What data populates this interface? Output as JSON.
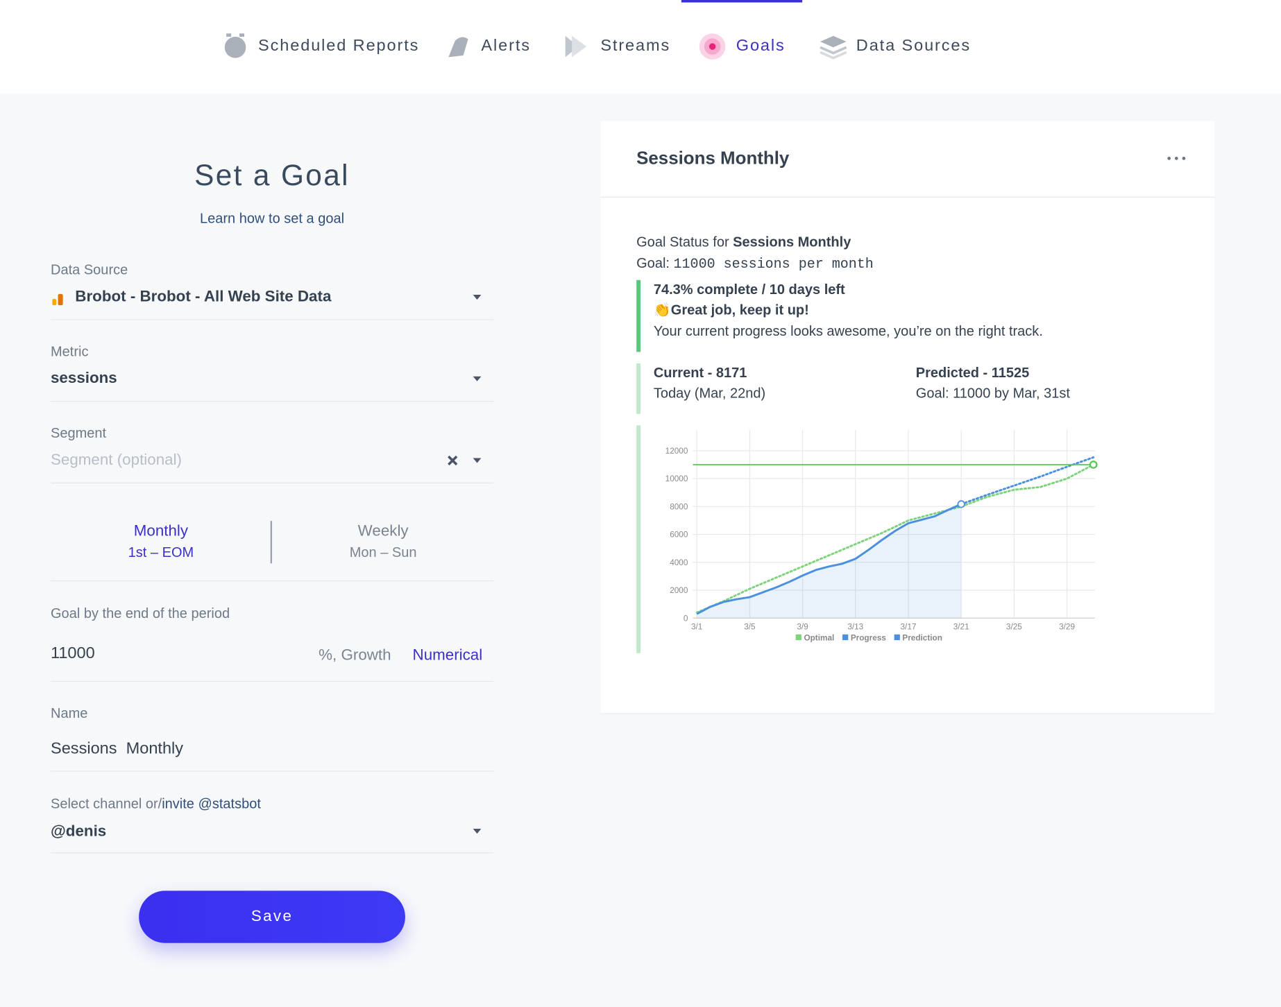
{
  "nav": {
    "items": [
      "Scheduled Reports",
      "Alerts",
      "Streams",
      "Goals",
      "Data Sources"
    ],
    "active": 3
  },
  "form": {
    "title": "Set a Goal",
    "help": "Learn how to set a goal",
    "data_source": {
      "label": "Data Source",
      "value": "Brobot - Brobot - All Web Site Data"
    },
    "metric": {
      "label": "Metric",
      "value": "sessions"
    },
    "segment": {
      "label": "Segment",
      "placeholder": "Segment (optional)"
    },
    "period": [
      {
        "name": "Monthly",
        "range": "1st – EOM"
      },
      {
        "name": "Weekly",
        "range": "Mon – Sun"
      }
    ],
    "goal": {
      "label": "Goal by the end of the period",
      "value": "11000",
      "modes": [
        "%, Growth",
        "Numerical"
      ]
    },
    "name": {
      "label": "Name",
      "value": "Sessions  Monthly"
    },
    "channel": {
      "label": "Select channel or/",
      "invite": "invite @statsbot",
      "value": "@denis"
    },
    "save": "Save"
  },
  "card": {
    "title": "Sessions Monthly",
    "status_prefix": "Goal Status for",
    "status_name": "Sessions Monthly",
    "goal_prefix": "Goal:",
    "goal_text": "11000 sessions per month",
    "progress": "74.3% complete / 10 days left",
    "praise": "👏Great job, keep it up!",
    "message": "Your current progress looks awesome, you’re on the right track.",
    "current": {
      "title": "Current - 8171",
      "sub": "Today (Mar, 22nd)"
    },
    "predicted": {
      "title": "Predicted - 11525",
      "sub": "Goal: 11000 by Mar, 31st"
    }
  },
  "chart_data": {
    "type": "line",
    "xlim": [
      0.7,
      31.1
    ],
    "xticks": [
      {
        "value": 1,
        "label": "3/1"
      },
      {
        "value": 5,
        "label": "3/5"
      },
      {
        "value": 9,
        "label": "3/9"
      },
      {
        "value": 13,
        "label": "3/13"
      },
      {
        "value": 17,
        "label": "3/17"
      },
      {
        "value": 21,
        "label": "3/21"
      },
      {
        "value": 25,
        "label": "3/25"
      },
      {
        "value": 29,
        "label": "3/29"
      }
    ],
    "ylim": [
      0,
      13500
    ],
    "yticks": [
      0,
      2000,
      4000,
      6000,
      8000,
      10000,
      12000
    ],
    "grid": true,
    "goal_line": {
      "value": 11000,
      "color": "#5cc65c"
    },
    "series": [
      {
        "name": "Optimal",
        "color": "#7ed37a",
        "style": "dotted",
        "x": [
          1,
          3,
          5,
          7,
          9,
          11,
          13,
          15,
          17,
          19,
          21,
          23,
          25,
          27,
          29,
          31
        ],
        "values": [
          400,
          1200,
          2100,
          2900,
          3700,
          4500,
          5300,
          6100,
          7000,
          7500,
          8000,
          8700,
          9200,
          9400,
          10000,
          11000
        ]
      },
      {
        "name": "Progress",
        "color": "#4a8fe0",
        "style": "solid",
        "area": true,
        "x": [
          1,
          2,
          3,
          4,
          5,
          6,
          7,
          8,
          9,
          10,
          11,
          12,
          13,
          14,
          15,
          16,
          17,
          18,
          19,
          20,
          21
        ],
        "values": [
          300,
          800,
          1150,
          1350,
          1500,
          1850,
          2200,
          2600,
          3050,
          3450,
          3700,
          3900,
          4250,
          4900,
          5600,
          6250,
          6800,
          7050,
          7300,
          7750,
          8171
        ]
      },
      {
        "name": "Prediction",
        "color": "#4a8fe0",
        "style": "dotted",
        "x": [
          21,
          23,
          25,
          27,
          29,
          31
        ],
        "values": [
          8171,
          8850,
          9500,
          10150,
          10850,
          11525
        ]
      }
    ]
  }
}
